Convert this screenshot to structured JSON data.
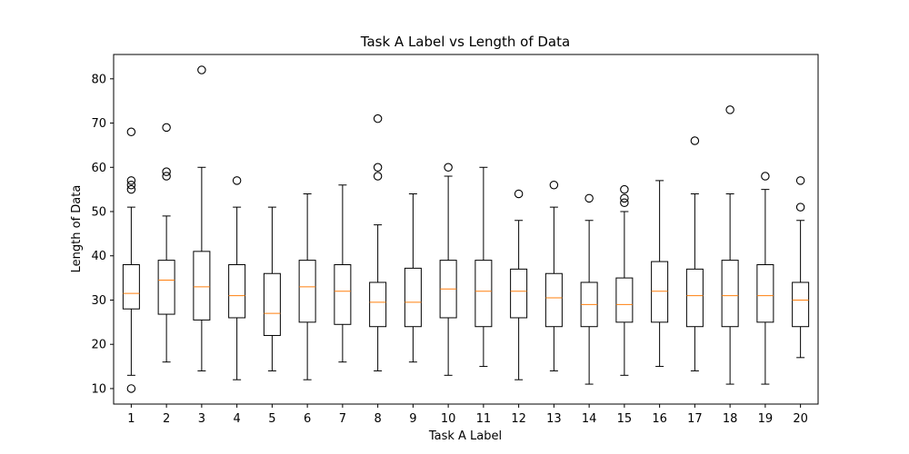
{
  "chart_data": {
    "type": "box",
    "title": "Task A Label vs Length of Data",
    "xlabel": "Task A Label",
    "ylabel": "Length of Data",
    "xlim": [
      0.5,
      20.5
    ],
    "ylim": [
      6.5,
      85.5
    ],
    "yticks": [
      10,
      20,
      30,
      40,
      50,
      60,
      70,
      80
    ],
    "grid": false,
    "colors": {
      "box": "#000000",
      "median": "#ff7f0e",
      "flier": "#000000"
    },
    "categories": [
      "1",
      "2",
      "3",
      "4",
      "5",
      "6",
      "7",
      "8",
      "9",
      "10",
      "11",
      "12",
      "13",
      "14",
      "15",
      "16",
      "17",
      "18",
      "19",
      "20"
    ],
    "boxes": [
      {
        "label": "1",
        "whislo": 13,
        "q1": 28,
        "med": 31.5,
        "q3": 38,
        "whishi": 51,
        "fliers": [
          10,
          55,
          56,
          57,
          68
        ]
      },
      {
        "label": "2",
        "whislo": 16,
        "q1": 26.8,
        "med": 34.5,
        "q3": 39,
        "whishi": 49,
        "fliers": [
          58,
          59,
          69
        ]
      },
      {
        "label": "3",
        "whislo": 14,
        "q1": 25.5,
        "med": 33,
        "q3": 41,
        "whishi": 60,
        "fliers": [
          82
        ]
      },
      {
        "label": "4",
        "whislo": 12,
        "q1": 26,
        "med": 31,
        "q3": 38,
        "whishi": 51,
        "fliers": [
          57
        ]
      },
      {
        "label": "5",
        "whislo": 14,
        "q1": 22,
        "med": 27,
        "q3": 36,
        "whishi": 51,
        "fliers": []
      },
      {
        "label": "6",
        "whislo": 12,
        "q1": 25,
        "med": 33,
        "q3": 39,
        "whishi": 54,
        "fliers": []
      },
      {
        "label": "7",
        "whislo": 16,
        "q1": 24.5,
        "med": 32,
        "q3": 38,
        "whishi": 56,
        "fliers": []
      },
      {
        "label": "8",
        "whislo": 14,
        "q1": 24,
        "med": 29.5,
        "q3": 34,
        "whishi": 47,
        "fliers": [
          58,
          60,
          71
        ]
      },
      {
        "label": "9",
        "whislo": 16,
        "q1": 24,
        "med": 29.5,
        "q3": 37.2,
        "whishi": 54,
        "fliers": []
      },
      {
        "label": "10",
        "whislo": 13,
        "q1": 26,
        "med": 32.5,
        "q3": 39,
        "whishi": 58,
        "fliers": [
          60
        ]
      },
      {
        "label": "11",
        "whislo": 15,
        "q1": 24,
        "med": 32,
        "q3": 39,
        "whishi": 60,
        "fliers": []
      },
      {
        "label": "12",
        "whislo": 12,
        "q1": 26,
        "med": 32,
        "q3": 37,
        "whishi": 48,
        "fliers": [
          54
        ]
      },
      {
        "label": "13",
        "whislo": 14,
        "q1": 24,
        "med": 30.5,
        "q3": 36,
        "whishi": 51,
        "fliers": [
          56
        ]
      },
      {
        "label": "14",
        "whislo": 11,
        "q1": 24,
        "med": 29,
        "q3": 34,
        "whishi": 48,
        "fliers": [
          53
        ]
      },
      {
        "label": "15",
        "whislo": 13,
        "q1": 25,
        "med": 29,
        "q3": 35,
        "whishi": 50,
        "fliers": [
          52,
          53,
          55
        ]
      },
      {
        "label": "16",
        "whislo": 15,
        "q1": 25,
        "med": 32,
        "q3": 38.7,
        "whishi": 57,
        "fliers": []
      },
      {
        "label": "17",
        "whislo": 14,
        "q1": 24,
        "med": 31,
        "q3": 37,
        "whishi": 54,
        "fliers": [
          66
        ]
      },
      {
        "label": "18",
        "whislo": 11,
        "q1": 24,
        "med": 31,
        "q3": 39,
        "whishi": 54,
        "fliers": [
          73
        ]
      },
      {
        "label": "19",
        "whislo": 11,
        "q1": 25,
        "med": 31,
        "q3": 38,
        "whishi": 55,
        "fliers": [
          58
        ]
      },
      {
        "label": "20",
        "whislo": 17,
        "q1": 24,
        "med": 30,
        "q3": 34,
        "whishi": 48,
        "fliers": [
          51,
          57
        ]
      }
    ]
  }
}
